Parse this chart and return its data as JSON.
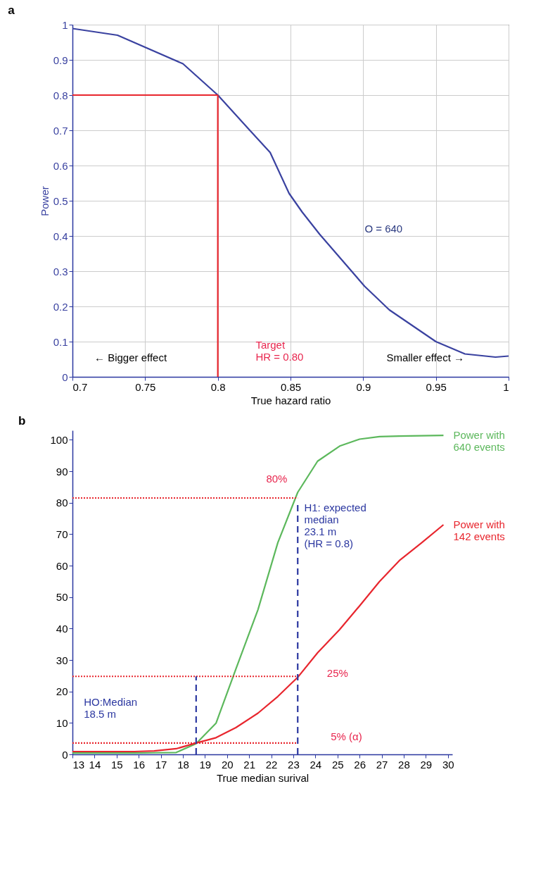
{
  "chart_data": [
    {
      "type": "line",
      "title": "a",
      "xlabel": "True hazard ratio",
      "ylabel": "Power",
      "xlim": [
        0.7,
        1
      ],
      "ylim": [
        0,
        1
      ],
      "xticks": [
        0.7,
        0.75,
        0.8,
        0.85,
        0.9,
        0.95,
        1
      ],
      "yticks": [
        0,
        0.1,
        0.2,
        0.3,
        0.4,
        0.5,
        0.6,
        0.7,
        0.8,
        0.9,
        1
      ],
      "grid": true,
      "series": [
        {
          "color": "#3a42a0",
          "x": [
            0.7,
            0.731,
            0.776,
            0.8,
            0.822,
            0.836,
            0.849,
            0.858,
            0.87,
            0.901,
            0.918,
            0.95,
            0.97,
            0.991,
            1.0
          ],
          "values": [
            0.989,
            0.97,
            0.889,
            0.8,
            0.7,
            0.637,
            0.521,
            0.468,
            0.405,
            0.257,
            0.19,
            0.1,
            0.065,
            0.056,
            0.059
          ]
        },
        {
          "color": "#e8262e",
          "x": [
            0.7,
            0.8
          ],
          "values": [
            0.8,
            0.8
          ]
        },
        {
          "color": "#e8262e",
          "x": [
            0.8,
            0.8
          ],
          "values": [
            0,
            0.8
          ]
        }
      ],
      "annotations": [
        "O = 640",
        "Target\nHR = 0.80",
        "← Bigger effect",
        "Smaller effect →"
      ]
    },
    {
      "type": "line",
      "title": "b",
      "xlabel": "True median surival",
      "xlim": [
        13,
        30.2
      ],
      "ylim": [
        0,
        103
      ],
      "xticks": [
        13,
        14,
        15,
        16,
        17,
        18,
        19,
        20,
        21,
        22,
        23,
        24,
        25,
        26,
        27,
        28,
        29,
        30
      ],
      "yticks": [
        0,
        10,
        20,
        30,
        40,
        50,
        60,
        70,
        80,
        90,
        100
      ],
      "grid": false,
      "series": [
        {
          "name": "Power with\n640 events",
          "color": "#5cb85c",
          "x": [
            13,
            13.9,
            14.8,
            15.8,
            16.7,
            17.7,
            18.6,
            19.5,
            20.4,
            21.4,
            22.3,
            23.2,
            24.1,
            25.1,
            26.0,
            26.9,
            27.8,
            28.8,
            29.8
          ],
          "values": [
            0.4,
            0.4,
            0.4,
            0.4,
            0.5,
            0.6,
            3.4,
            9.9,
            27.1,
            46,
            67.3,
            83.3,
            93.2,
            98,
            100.2,
            101,
            101.2,
            101.3,
            101.4
          ]
        },
        {
          "name": "Power with\n142 events",
          "color": "#e8262e",
          "x": [
            13,
            13.9,
            14.8,
            15.8,
            16.7,
            17.7,
            18.6,
            19.5,
            20.4,
            21.4,
            22.3,
            23.2,
            24.1,
            25.1,
            26.0,
            26.9,
            27.8,
            28.8,
            29.8
          ],
          "values": [
            0.9,
            0.9,
            0.9,
            0.9,
            1.1,
            1.8,
            3.6,
            5.3,
            8.5,
            13.1,
            18.4,
            24.5,
            32.3,
            39.7,
            47.2,
            54.9,
            61.6,
            67.2,
            73
          ]
        },
        {
          "color": "#e8262e",
          "line_style": "dotted",
          "x": [
            13,
            23.2
          ],
          "values": [
            81.5,
            81.5
          ]
        },
        {
          "color": "#e8262e",
          "line_style": "dotted",
          "x": [
            13,
            23.2
          ],
          "values": [
            24.8,
            24.8
          ]
        },
        {
          "color": "#e8262e",
          "line_style": "dotted",
          "x": [
            13,
            23.2
          ],
          "values": [
            3.6,
            3.6
          ]
        },
        {
          "color": "#2b37a0",
          "line_style": "dashed",
          "x": [
            18.6,
            18.6
          ],
          "values": [
            0,
            24.8
          ]
        },
        {
          "color": "#2b37a0",
          "line_style": "dashed",
          "x": [
            23.2,
            23.2
          ],
          "values": [
            0,
            80
          ]
        }
      ],
      "annotations": [
        "80%",
        "25%",
        "5% (α)",
        "H1: expected\nmedian\n23.1 m\n(HR = 0.8)",
        "HO:Median\n18.5 m"
      ]
    }
  ]
}
